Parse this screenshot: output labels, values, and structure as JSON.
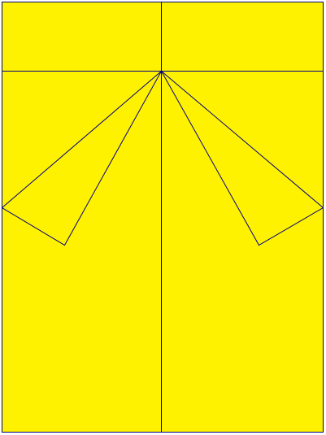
{
  "diagram": {
    "fill_color": "#FFF200",
    "stroke_color": "#000080",
    "background_color": "#FFFFFF"
  }
}
